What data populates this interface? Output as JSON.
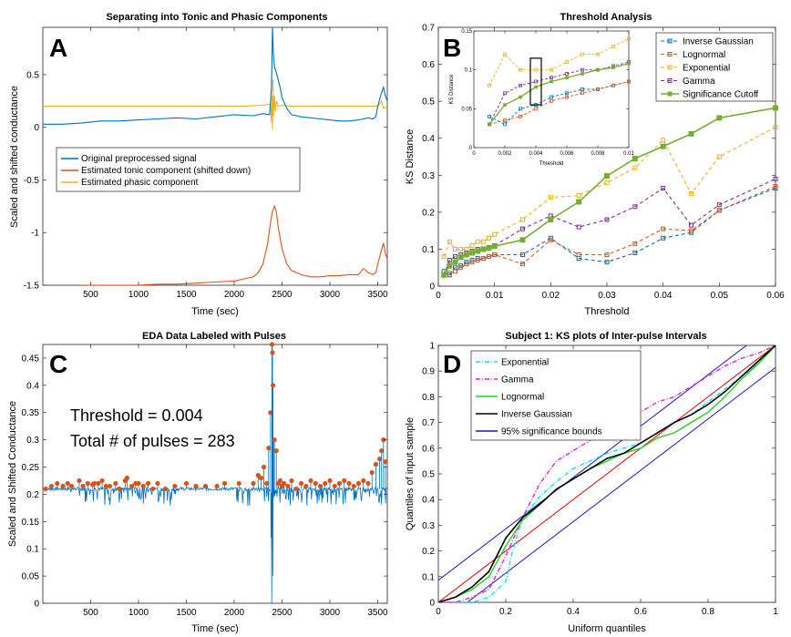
{
  "chart_data": [
    {
      "panel": "A",
      "type": "line",
      "title": "Separating into Tonic and Phasic Components",
      "xlabel": "Time (sec)",
      "ylabel": "Scaled and shifted conductance",
      "xlim": [
        0,
        3600
      ],
      "ylim": [
        -1.5,
        0.95
      ],
      "xticks": [
        "500",
        "1000",
        "1500",
        "2000",
        "2500",
        "3000",
        "3500"
      ],
      "xtickvals": [
        500,
        1000,
        1500,
        2000,
        2500,
        3000,
        3500
      ],
      "yticks": [
        "-1.5",
        "-1",
        "-0.5",
        "0",
        "0.5"
      ],
      "ytickvals": [
        -1.5,
        -1,
        -0.5,
        0,
        0.5
      ],
      "series": [
        {
          "name": "Original preprocessed signal",
          "color": "#0072BD",
          "x": [
            0,
            200,
            400,
            600,
            800,
            1000,
            1200,
            1400,
            1600,
            1800,
            2000,
            2200,
            2300,
            2370,
            2390,
            2400,
            2410,
            2420,
            2440,
            2460,
            2480,
            2500,
            2550,
            2600,
            2700,
            2800,
            2900,
            3000,
            3100,
            3200,
            3300,
            3400,
            3450,
            3480,
            3500,
            3530,
            3560,
            3580,
            3600
          ],
          "y": [
            0.03,
            0.03,
            0.04,
            0.06,
            0.06,
            0.07,
            0.08,
            0.09,
            0.08,
            0.1,
            0.12,
            0.11,
            0.13,
            0.12,
            0.38,
            0.95,
            0.7,
            0.58,
            0.52,
            0.45,
            0.38,
            0.28,
            0.18,
            0.12,
            0.1,
            0.09,
            0.08,
            0.07,
            0.06,
            0.06,
            0.07,
            0.09,
            0.08,
            0.1,
            0.2,
            0.3,
            0.38,
            0.3,
            0.25
          ]
        },
        {
          "name": "Estimated tonic component (shifted down)",
          "color": "#D95319",
          "x": [
            0,
            200,
            400,
            600,
            800,
            1000,
            1200,
            1400,
            1600,
            1800,
            2000,
            2100,
            2200,
            2250,
            2300,
            2350,
            2380,
            2400,
            2420,
            2440,
            2460,
            2500,
            2550,
            2600,
            2700,
            2800,
            2900,
            3000,
            3100,
            3200,
            3300,
            3350,
            3400,
            3450,
            3480,
            3500,
            3530,
            3560,
            3580,
            3600
          ],
          "y": [
            -1.51,
            -1.52,
            -1.5,
            -1.5,
            -1.5,
            -1.5,
            -1.49,
            -1.49,
            -1.48,
            -1.47,
            -1.46,
            -1.44,
            -1.42,
            -1.38,
            -1.3,
            -1.1,
            -0.9,
            -0.8,
            -0.75,
            -0.8,
            -0.95,
            -1.15,
            -1.3,
            -1.36,
            -1.4,
            -1.42,
            -1.42,
            -1.41,
            -1.41,
            -1.4,
            -1.4,
            -1.34,
            -1.38,
            -1.4,
            -1.38,
            -1.3,
            -1.2,
            -1.1,
            -1.2,
            -1.25
          ]
        },
        {
          "name": "Estimated phasic component",
          "color": "#EDB120",
          "x": [
            0,
            300,
            600,
            900,
            1200,
            1500,
            1800,
            2100,
            2300,
            2380,
            2390,
            2395,
            2400,
            2405,
            2410,
            2420,
            2430,
            2440,
            2460,
            2500,
            2600,
            2800,
            3000,
            3200,
            3400,
            3500,
            3540,
            3560,
            3600
          ],
          "y": [
            0.2,
            0.2,
            0.2,
            0.2,
            0.2,
            0.2,
            0.2,
            0.2,
            0.21,
            0.22,
            0.05,
            0.3,
            -0.02,
            0.45,
            0.1,
            0.3,
            0.15,
            0.25,
            0.2,
            0.21,
            0.2,
            0.2,
            0.2,
            0.2,
            0.2,
            0.2,
            0.25,
            0.18,
            0.2
          ]
        }
      ]
    },
    {
      "panel": "B",
      "type": "line",
      "title": "Threshold Analysis",
      "xlabel": "Threshold",
      "ylabel": "KS Distance",
      "xlim": [
        0,
        0.06
      ],
      "ylim": [
        0,
        0.7
      ],
      "xticks": [
        "0",
        "0.01",
        "0.02",
        "0.03",
        "0.04",
        "0.05",
        "0.06"
      ],
      "xtickvals": [
        0,
        0.01,
        0.02,
        0.03,
        0.04,
        0.05,
        0.06
      ],
      "yticks": [
        "0",
        "0.1",
        "0.2",
        "0.3",
        "0.4",
        "0.5",
        "0.6",
        "0.7"
      ],
      "ytickvals": [
        0,
        0.1,
        0.2,
        0.3,
        0.4,
        0.5,
        0.6,
        0.7
      ],
      "x": [
        0.001,
        0.002,
        0.003,
        0.004,
        0.005,
        0.006,
        0.007,
        0.008,
        0.009,
        0.01,
        0.015,
        0.02,
        0.025,
        0.03,
        0.035,
        0.04,
        0.045,
        0.05,
        0.06
      ],
      "series": [
        {
          "name": "Inverse Gaussian",
          "color": "#0072BD",
          "dash": true,
          "values": [
            0.04,
            0.03,
            0.05,
            0.055,
            0.065,
            0.07,
            0.075,
            0.075,
            0.08,
            0.085,
            0.085,
            0.13,
            0.075,
            0.065,
            0.09,
            0.13,
            0.145,
            0.205,
            0.265
          ]
        },
        {
          "name": "Lognormal",
          "color": "#D95319",
          "dash": true,
          "values": [
            0.03,
            0.035,
            0.04,
            0.05,
            0.06,
            0.065,
            0.07,
            0.075,
            0.08,
            0.085,
            0.06,
            0.125,
            0.085,
            0.085,
            0.115,
            0.155,
            0.15,
            0.205,
            0.27
          ]
        },
        {
          "name": "Exponential",
          "color": "#EDB120",
          "dash": true,
          "values": [
            0.08,
            0.12,
            0.1,
            0.1,
            0.1,
            0.11,
            0.12,
            0.12,
            0.13,
            0.14,
            0.18,
            0.24,
            0.245,
            0.28,
            0.32,
            0.395,
            0.25,
            0.35,
            0.43
          ]
        },
        {
          "name": "Gamma",
          "color": "#7E2F8E",
          "dash": true,
          "values": [
            0.03,
            0.07,
            0.08,
            0.085,
            0.09,
            0.095,
            0.1,
            0.1,
            0.105,
            0.11,
            0.155,
            0.19,
            0.16,
            0.18,
            0.215,
            0.265,
            0.165,
            0.22,
            0.29
          ]
        },
        {
          "name": "Significance Cutoff",
          "color": "#77AC30",
          "dash": false,
          "values": [
            0.03,
            0.055,
            0.065,
            0.078,
            0.085,
            0.09,
            0.095,
            0.1,
            0.103,
            0.108,
            0.125,
            0.18,
            0.228,
            0.298,
            0.345,
            0.378,
            0.412,
            0.455,
            0.482
          ]
        }
      ],
      "inset": {
        "xlim": [
          0,
          0.01
        ],
        "ylim": [
          0,
          0.15
        ],
        "xlabel": "Threshold",
        "ylabel": "KS Distance",
        "xticks": [
          "0",
          "0.002",
          "0.004",
          "0.006",
          "0.008",
          "0.01"
        ],
        "xtickvals": [
          0,
          0.002,
          0.004,
          0.006,
          0.008,
          0.01
        ],
        "yticks": [
          "0",
          "0.05",
          "0.1",
          "0.15"
        ],
        "ytickvals": [
          0,
          0.05,
          0.1,
          0.15
        ],
        "highlight_x": 0.004
      }
    },
    {
      "panel": "C",
      "type": "line",
      "title": "EDA Data Labeled with Pulses",
      "xlabel": "Time (sec)",
      "ylabel": "Scaled and Shifted Conductance",
      "xlim": [
        0,
        3600
      ],
      "ylim": [
        0,
        0.475
      ],
      "xticks": [
        "500",
        "1000",
        "1500",
        "2000",
        "2500",
        "3000",
        "3500"
      ],
      "xtickvals": [
        500,
        1000,
        1500,
        2000,
        2500,
        3000,
        3500
      ],
      "yticks": [
        "0",
        "0.05",
        "0.1",
        "0.15",
        "0.2",
        "0.25",
        "0.3",
        "0.35",
        "0.4",
        "0.45"
      ],
      "ytickvals": [
        0,
        0.05,
        0.1,
        0.15,
        0.2,
        0.25,
        0.3,
        0.35,
        0.4,
        0.45
      ],
      "signal_color": "#0072BD",
      "pulse_color": "#D95319",
      "baseline": 0.21,
      "annotation": [
        "Threshold = 0.004",
        "Total # of pulses = 283"
      ],
      "pulse_times": [
        30,
        90,
        150,
        210,
        260,
        300,
        380,
        420,
        470,
        520,
        540,
        580,
        620,
        660,
        700,
        760,
        800,
        860,
        880,
        930,
        970,
        1000,
        1050,
        1100,
        1150,
        1200,
        1280,
        1380,
        1500,
        1600,
        1700,
        1820,
        1900,
        2050,
        2200,
        2250,
        2280,
        2310,
        2340,
        2360,
        2380,
        2395,
        2400,
        2405,
        2420,
        2440,
        2460,
        2480,
        2500,
        2520,
        2560,
        2600,
        2650,
        2700,
        2750,
        2800,
        2850,
        2900,
        2950,
        3000,
        3050,
        3100,
        3150,
        3200,
        3250,
        3300,
        3350,
        3400,
        3440,
        3480,
        3520,
        3540,
        3560,
        3580
      ],
      "pulse_values": [
        0.21,
        0.215,
        0.22,
        0.215,
        0.22,
        0.215,
        0.225,
        0.215,
        0.22,
        0.218,
        0.22,
        0.22,
        0.225,
        0.215,
        0.215,
        0.22,
        0.21,
        0.225,
        0.23,
        0.215,
        0.22,
        0.22,
        0.215,
        0.22,
        0.21,
        0.22,
        0.21,
        0.215,
        0.22,
        0.215,
        0.215,
        0.215,
        0.22,
        0.22,
        0.22,
        0.235,
        0.23,
        0.25,
        0.22,
        0.285,
        0.35,
        0.475,
        0.46,
        0.4,
        0.3,
        0.28,
        0.22,
        0.225,
        0.215,
        0.22,
        0.215,
        0.225,
        0.21,
        0.22,
        0.215,
        0.225,
        0.22,
        0.215,
        0.22,
        0.225,
        0.215,
        0.22,
        0.225,
        0.22,
        0.215,
        0.22,
        0.225,
        0.22,
        0.24,
        0.255,
        0.265,
        0.28,
        0.3,
        0.26
      ]
    },
    {
      "panel": "D",
      "type": "line",
      "title": "Subject 1: KS plots of Inter-pulse Intervals",
      "xlabel": "Uniform quantiles",
      "ylabel": "Quantiles of input sample",
      "xlim": [
        0,
        1
      ],
      "ylim": [
        0,
        1
      ],
      "xticks": [
        "0",
        "0.2",
        "0.4",
        "0.6",
        "0.8",
        "1"
      ],
      "xtickvals": [
        0,
        0.2,
        0.4,
        0.6,
        0.8,
        1
      ],
      "yticks": [
        "0",
        "0.1",
        "0.2",
        "0.3",
        "0.4",
        "0.5",
        "0.6",
        "0.7",
        "0.8",
        "0.9",
        "1"
      ],
      "ytickvals": [
        0,
        0.1,
        0.2,
        0.3,
        0.4,
        0.5,
        0.6,
        0.7,
        0.8,
        0.9,
        1
      ],
      "series": [
        {
          "name": "Exponential",
          "color": "#00E5EE",
          "style": "dashdot",
          "x": [
            0,
            0.1,
            0.15,
            0.2,
            0.22,
            0.25,
            0.3,
            0.35,
            0.4,
            0.45,
            0.5,
            0.55,
            0.6,
            0.65,
            0.7,
            0.75,
            0.8,
            0.85,
            0.9,
            0.95,
            1
          ],
          "y": [
            0,
            0.0,
            0.02,
            0.08,
            0.2,
            0.33,
            0.41,
            0.47,
            0.52,
            0.55,
            0.58,
            0.6,
            0.62,
            0.66,
            0.7,
            0.73,
            0.78,
            0.83,
            0.88,
            0.93,
            1
          ]
        },
        {
          "name": "Gamma",
          "color": "#E020E0",
          "style": "dashdot",
          "x": [
            0,
            0.05,
            0.1,
            0.15,
            0.2,
            0.25,
            0.3,
            0.35,
            0.4,
            0.45,
            0.5,
            0.55,
            0.6,
            0.65,
            0.7,
            0.75,
            0.8,
            0.85,
            0.9,
            0.95,
            1
          ],
          "y": [
            0,
            0.0,
            0.02,
            0.05,
            0.18,
            0.33,
            0.46,
            0.55,
            0.59,
            0.63,
            0.66,
            0.7,
            0.74,
            0.78,
            0.8,
            0.84,
            0.88,
            0.92,
            0.95,
            0.97,
            1
          ]
        },
        {
          "name": "Lognormal",
          "color": "#22D022",
          "style": "solid",
          "x": [
            0,
            0.05,
            0.1,
            0.15,
            0.2,
            0.25,
            0.3,
            0.35,
            0.4,
            0.45,
            0.5,
            0.55,
            0.6,
            0.65,
            0.7,
            0.75,
            0.8,
            0.85,
            0.9,
            0.95,
            1
          ],
          "y": [
            0,
            0.02,
            0.05,
            0.1,
            0.22,
            0.32,
            0.38,
            0.44,
            0.48,
            0.52,
            0.55,
            0.58,
            0.6,
            0.64,
            0.66,
            0.7,
            0.74,
            0.8,
            0.87,
            0.93,
            1
          ]
        },
        {
          "name": "Inverse Gaussian",
          "color": "#000000",
          "style": "solid",
          "x": [
            0,
            0.05,
            0.1,
            0.15,
            0.2,
            0.25,
            0.3,
            0.35,
            0.4,
            0.45,
            0.5,
            0.55,
            0.6,
            0.65,
            0.7,
            0.75,
            0.8,
            0.85,
            0.9,
            0.95,
            1
          ],
          "y": [
            0,
            0.02,
            0.06,
            0.12,
            0.25,
            0.33,
            0.38,
            0.44,
            0.48,
            0.52,
            0.56,
            0.58,
            0.62,
            0.66,
            0.7,
            0.73,
            0.77,
            0.82,
            0.88,
            0.94,
            1
          ]
        },
        {
          "name": "95% significance bounds",
          "color": "#1818C0",
          "style": "solid",
          "bounds": [
            0.086,
            -0.086
          ]
        }
      ]
    }
  ]
}
